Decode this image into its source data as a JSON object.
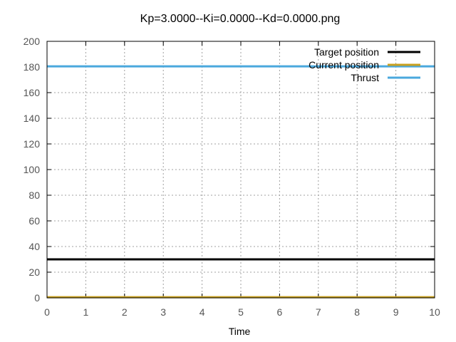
{
  "chart_data": {
    "type": "line",
    "title": "Kp=3.0000--Ki=0.0000--Kd=0.0000.png",
    "xlabel": "Time",
    "ylabel": "",
    "xlim": [
      0,
      10
    ],
    "ylim": [
      0,
      200
    ],
    "x_ticks": [
      "0",
      "1",
      "2",
      "3",
      "4",
      "5",
      "6",
      "7",
      "8",
      "9",
      "10"
    ],
    "y_ticks": [
      "0",
      "20",
      "40",
      "60",
      "80",
      "100",
      "120",
      "140",
      "160",
      "180",
      "200"
    ],
    "grid": true,
    "legend_position": "top-right",
    "series": [
      {
        "name": "Target position",
        "color": "#000000",
        "x": [
          0,
          10
        ],
        "values": [
          30,
          30
        ]
      },
      {
        "name": "Current position",
        "color": "#c8a020",
        "x": [
          0,
          1,
          2,
          3,
          4,
          5,
          6,
          7,
          8,
          9,
          10
        ],
        "values": [
          0.5,
          0.5,
          0.5,
          0.5,
          0.5,
          0.5,
          0.5,
          0.5,
          0.5,
          0.5,
          0.5
        ]
      },
      {
        "name": "Thrust",
        "color": "#4aa8dd",
        "x": [
          0,
          1,
          2,
          3,
          4,
          5,
          6,
          7,
          8,
          9,
          10
        ],
        "values": [
          180.5,
          180.5,
          180.5,
          180.5,
          180.5,
          180.5,
          180.5,
          180.5,
          180.5,
          180.5,
          180.5
        ]
      }
    ]
  }
}
